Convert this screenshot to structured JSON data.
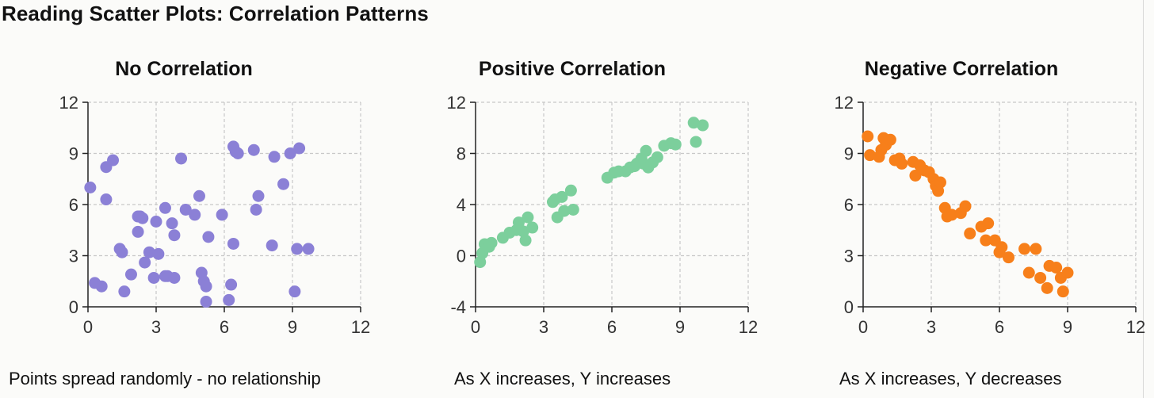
{
  "page": {
    "title": "Reading Scatter Plots: Correlation Patterns"
  },
  "chart_data": [
    {
      "type": "scatter",
      "title": "No Correlation",
      "caption": "Points spread randomly - no relationship",
      "xlim": [
        0,
        12
      ],
      "ylim": [
        0,
        12
      ],
      "xticks": [
        0,
        3,
        6,
        9,
        12
      ],
      "yticks": [
        0,
        3,
        6,
        9,
        12
      ],
      "grid": true,
      "color": "#8b80d6",
      "series": [
        {
          "x": [
            0.1,
            0.3,
            0.6,
            0.8,
            0.8,
            1.1,
            1.4,
            1.5,
            1.6,
            1.9,
            2.2,
            2.2,
            2.3,
            2.4,
            2.5,
            2.7,
            2.9,
            3.0,
            3.1,
            3.4,
            3.4,
            3.5,
            3.7,
            3.8,
            3.8,
            4.1,
            4.3,
            4.7,
            4.9,
            5.0,
            5.1,
            5.2,
            5.2,
            5.3,
            5.9,
            6.2,
            6.3,
            6.4,
            6.4,
            6.5,
            6.6,
            7.3,
            7.4,
            7.5,
            8.1,
            8.2,
            8.6,
            8.9,
            9.1,
            9.2,
            9.3,
            9.7
          ],
          "y": [
            7.0,
            1.4,
            1.2,
            8.2,
            6.3,
            8.6,
            3.4,
            3.2,
            0.9,
            1.9,
            5.3,
            4.4,
            5.3,
            5.2,
            2.6,
            3.2,
            1.7,
            5.0,
            3.1,
            5.8,
            1.8,
            1.8,
            4.9,
            4.2,
            1.7,
            8.7,
            5.7,
            5.4,
            6.5,
            2.0,
            1.5,
            1.2,
            0.3,
            4.1,
            5.4,
            0.4,
            1.3,
            3.7,
            9.4,
            9.1,
            9.0,
            9.2,
            5.7,
            6.5,
            3.6,
            8.8,
            7.2,
            9.0,
            0.9,
            3.4,
            9.3,
            3.4
          ]
        }
      ]
    },
    {
      "type": "scatter",
      "title": "Positive Correlation",
      "caption": "As X increases, Y increases",
      "xlim": [
        0,
        12
      ],
      "ylim": [
        -4,
        12
      ],
      "xticks": [
        0,
        3,
        6,
        9,
        12
      ],
      "yticks": [
        -4,
        0,
        4,
        8,
        12
      ],
      "grid": true,
      "color": "#7ccf9c",
      "series": [
        {
          "x": [
            0.2,
            0.3,
            0.4,
            0.6,
            0.7,
            1.2,
            1.5,
            1.8,
            1.9,
            2.1,
            2.2,
            2.3,
            2.5,
            3.4,
            3.5,
            3.6,
            3.8,
            3.9,
            4.2,
            4.3,
            5.8,
            6.1,
            6.3,
            6.6,
            6.8,
            7.0,
            7.1,
            7.3,
            7.4,
            7.5,
            7.6,
            7.8,
            8.0,
            8.3,
            8.6,
            8.8,
            9.6,
            9.7,
            10.0
          ],
          "y": [
            -0.5,
            0.2,
            0.9,
            0.7,
            1.0,
            1.4,
            1.8,
            2.0,
            2.6,
            1.9,
            1.2,
            3.0,
            2.2,
            4.2,
            4.4,
            3.0,
            4.6,
            3.5,
            5.1,
            3.6,
            6.1,
            6.5,
            6.6,
            6.6,
            6.9,
            7.0,
            7.2,
            7.6,
            7.2,
            8.2,
            6.9,
            7.3,
            7.7,
            8.6,
            8.8,
            8.7,
            10.4,
            8.9,
            10.2
          ]
        }
      ]
    },
    {
      "type": "scatter",
      "title": "Negative Correlation",
      "caption": "As X increases, Y decreases",
      "xlim": [
        0,
        12
      ],
      "ylim": [
        0,
        12
      ],
      "xticks": [
        0,
        3,
        6,
        9,
        12
      ],
      "yticks": [
        0,
        3,
        6,
        9,
        12
      ],
      "grid": true,
      "color": "#f77f1a",
      "series": [
        {
          "x": [
            0.2,
            0.3,
            0.7,
            0.8,
            0.9,
            1.0,
            1.2,
            1.4,
            1.6,
            1.7,
            2.2,
            2.3,
            2.5,
            2.7,
            2.9,
            3.1,
            3.2,
            3.3,
            3.4,
            3.6,
            3.7,
            3.9,
            4.3,
            4.5,
            4.7,
            5.2,
            5.4,
            5.5,
            5.8,
            6.0,
            6.1,
            6.4,
            7.1,
            7.3,
            7.6,
            7.8,
            8.1,
            8.2,
            8.5,
            8.7,
            8.8,
            9.0
          ],
          "y": [
            10.0,
            8.9,
            8.8,
            9.2,
            9.9,
            9.5,
            9.8,
            8.6,
            8.7,
            8.4,
            8.5,
            7.7,
            8.3,
            8.0,
            7.9,
            7.5,
            7.1,
            6.8,
            7.3,
            5.8,
            5.3,
            5.4,
            5.5,
            5.9,
            4.3,
            4.7,
            3.9,
            4.9,
            3.9,
            3.2,
            3.5,
            2.9,
            3.4,
            2.0,
            3.4,
            1.7,
            1.1,
            2.4,
            2.3,
            1.7,
            0.9,
            2.0
          ]
        }
      ]
    }
  ]
}
